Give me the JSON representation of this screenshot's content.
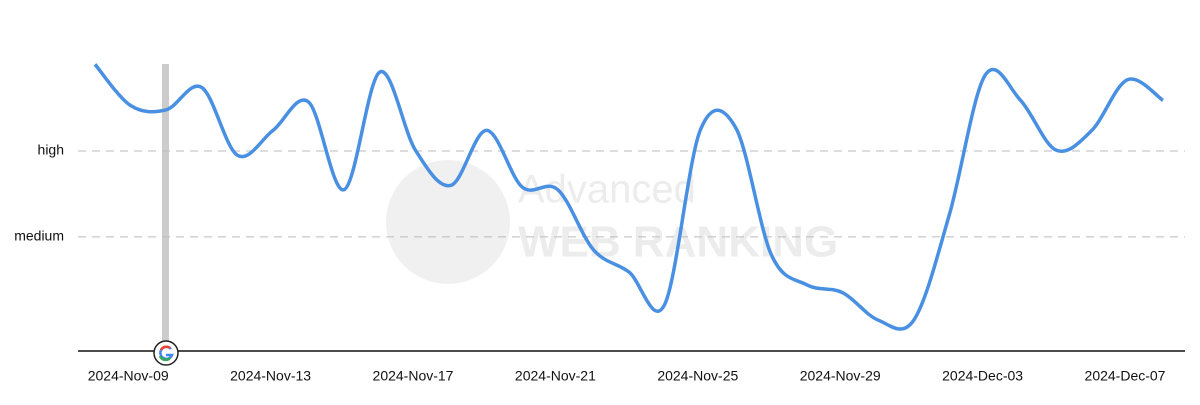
{
  "chart_data": {
    "type": "line",
    "watermark": [
      "Advanced",
      "WEB RANKING"
    ],
    "categories": [
      null,
      null,
      "2024-Nov-09",
      null,
      null,
      null,
      "2024-Nov-13",
      null,
      null,
      null,
      "2024-Nov-17",
      null,
      null,
      null,
      "2024-Nov-21",
      null,
      null,
      null,
      "2024-Nov-25",
      null,
      null,
      null,
      "2024-Nov-29",
      null,
      null,
      null,
      "2024-Dec-03",
      null,
      null,
      null,
      "2024-Dec-07"
    ],
    "series": [
      {
        "color": "#4a90e2",
        "values": [
          4.01,
          3.53,
          3.48,
          3.74,
          2.95,
          3.24,
          3.57,
          2.55,
          3.92,
          3.01,
          2.6,
          3.24,
          2.58,
          2.55,
          1.85,
          1.59,
          1.21,
          3.24,
          3.27,
          1.79,
          1.44,
          1.35,
          1.03,
          1.03,
          2.26,
          3.88,
          3.59,
          3.01,
          3.24,
          3.83,
          3.59
        ]
      }
    ],
    "ylim": [
      0.67,
      4.2
    ],
    "yticks": [
      {
        "value": 2,
        "label": "medium"
      },
      {
        "value": 3,
        "label": "high"
      }
    ],
    "grid": true
  }
}
